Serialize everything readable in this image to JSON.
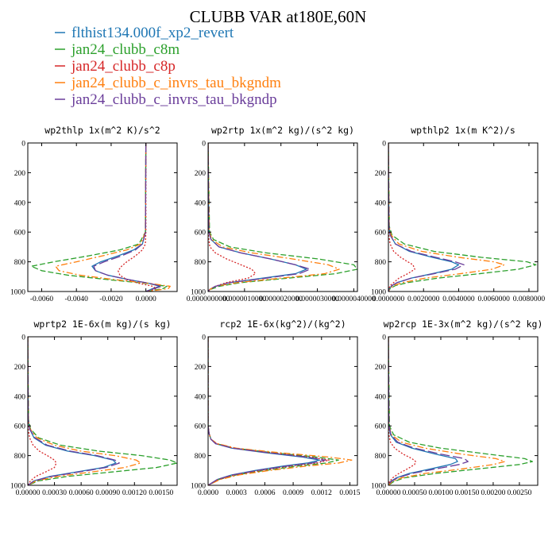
{
  "title": "CLUBB VAR at180E,60N",
  "legend": [
    {
      "label": "flthist134.000f_xp2_revert",
      "color": "#1f77b4",
      "dash": "solid"
    },
    {
      "label": "jan24_clubb_c8m",
      "color": "#2ca02c",
      "dash": "dashed"
    },
    {
      "label": "jan24_clubb_c8p",
      "color": "#d62728",
      "dash": "dotted"
    },
    {
      "label": "jan24_clubb_c_invrs_tau_bkgndm",
      "color": "#ff7f0e",
      "dash": "dashdot"
    },
    {
      "label": "jan24_clubb_c_invrs_tau_bkgndp",
      "color": "#6a3d9a",
      "dash": "longdash"
    }
  ],
  "chart_data": [
    {
      "type": "line",
      "title": "wp2thlp  1x(m^2 K)/s^2",
      "xlim": [
        -0.0068,
        0.0018
      ],
      "ylim": [
        1000,
        0
      ],
      "xticks": [
        -0.006,
        -0.004,
        -0.002,
        0.0
      ],
      "xtick_labels": [
        "-0.0060",
        "-0.0040",
        "-0.0020",
        "0.0000"
      ],
      "yticks": [
        0,
        200,
        400,
        600,
        800,
        1000
      ],
      "ytick_labels": [
        "0",
        "200",
        "400",
        "600",
        "800",
        "1000"
      ],
      "y": [
        0,
        600,
        680,
        720,
        760,
        800,
        830,
        860,
        890,
        920,
        945,
        965,
        980,
        995,
        1000
      ],
      "series": [
        {
          "values": [
            0,
            -2e-05,
            -0.0002,
            -0.0007,
            -0.0016,
            -0.0026,
            -0.0031,
            -0.0029,
            -0.0022,
            -0.001,
            0.0002,
            0.0008,
            0.0004,
            0.0001,
            0.0
          ]
        },
        {
          "values": [
            0,
            -3e-05,
            -0.0004,
            -0.0015,
            -0.0033,
            -0.0053,
            -0.0066,
            -0.006,
            -0.0045,
            -0.0022,
            0.0,
            0.0012,
            0.001,
            0.0003,
            0.0
          ]
        },
        {
          "values": [
            0,
            0.0,
            -3e-05,
            -0.0002,
            -0.0006,
            -0.0011,
            -0.0014,
            -0.0016,
            -0.0015,
            -0.0011,
            -0.0004,
            0.0004,
            0.0006,
            0.0002,
            0.0
          ]
        },
        {
          "values": [
            0,
            -3e-05,
            -0.0003,
            -0.0011,
            -0.0025,
            -0.004,
            -0.0052,
            -0.005,
            -0.0038,
            -0.0018,
            0.0002,
            0.0014,
            0.0013,
            0.0004,
            0.0
          ]
        },
        {
          "values": [
            0,
            -2e-05,
            -0.0002,
            -0.0006,
            -0.0014,
            -0.0024,
            -0.003,
            -0.0029,
            -0.0022,
            -0.001,
            0.0002,
            0.0009,
            0.0005,
            0.0001,
            0.0
          ]
        }
      ]
    },
    {
      "type": "line",
      "title": "wp2rtp  1x(m^2 kg)/(s^2 kg)",
      "xlim": [
        0,
        4.1e-06
      ],
      "ylim": [
        1000,
        0
      ],
      "xticks": [
        0,
        1e-06,
        2e-06,
        3e-06,
        4e-06
      ],
      "xtick_labels": [
        "0.0000000000",
        "0.0000010000",
        "0.0000020000",
        "0.0000030000",
        "0.0000040000"
      ],
      "yticks": [
        0,
        200,
        400,
        600,
        800,
        1000
      ],
      "ytick_labels": [
        "0",
        "200",
        "400",
        "600",
        "800",
        "1000"
      ],
      "y": [
        0,
        600,
        650,
        700,
        740,
        780,
        820,
        850,
        880,
        910,
        940,
        965,
        985,
        1000
      ],
      "series": [
        {
          "values": [
            0,
            2e-08,
            8e-08,
            3e-07,
            9e-07,
            1.7e-06,
            2.4e-06,
            2.7e-06,
            2.4e-06,
            1.5e-06,
            6e-07,
            2e-07,
            5e-08,
            0
          ]
        },
        {
          "values": [
            0,
            4e-08,
            1.5e-07,
            6e-07,
            1.6e-06,
            3e-06,
            4e-06,
            4.1e-06,
            3.5e-06,
            2.2e-06,
            9e-07,
            3e-07,
            8e-08,
            0
          ]
        },
        {
          "values": [
            0,
            0.0,
            2e-08,
            5e-08,
            2e-07,
            5e-07,
            9e-07,
            1.2e-06,
            1.3e-06,
            1.1e-06,
            5e-07,
            2e-07,
            5e-08,
            0
          ]
        },
        {
          "values": [
            0,
            3e-08,
            1e-07,
            4e-07,
            1.2e-06,
            2.3e-06,
            3.3e-06,
            3.6e-06,
            3.2e-06,
            2e-06,
            8e-07,
            2e-07,
            6e-08,
            0
          ]
        },
        {
          "values": [
            0,
            2e-08,
            8e-08,
            3e-07,
            9e-07,
            1.7e-06,
            2.4e-06,
            2.8e-06,
            2.5e-06,
            1.6e-06,
            6e-07,
            2e-07,
            5e-08,
            0
          ]
        }
      ]
    },
    {
      "type": "line",
      "title": "wpthlp2  1x(m K^2)/s",
      "xlim": [
        0,
        0.0085
      ],
      "ylim": [
        1000,
        0
      ],
      "xticks": [
        0,
        0.002,
        0.004,
        0.006,
        0.008
      ],
      "xtick_labels": [
        "0.0000000",
        "0.0020000",
        "0.0040000",
        "0.0060000",
        "0.0080000"
      ],
      "yticks": [
        0,
        200,
        400,
        600,
        800,
        1000
      ],
      "ytick_labels": [
        "0",
        "200",
        "400",
        "600",
        "800",
        "1000"
      ],
      "y": [
        0,
        560,
        620,
        680,
        730,
        770,
        800,
        820,
        850,
        880,
        910,
        940,
        960,
        980,
        1000
      ],
      "series": [
        {
          "values": [
            0,
            3e-05,
            0.0001,
            0.0004,
            0.0012,
            0.0025,
            0.0036,
            0.004,
            0.0036,
            0.0025,
            0.0013,
            0.0005,
            0.0002,
            5e-05,
            0
          ]
        },
        {
          "values": [
            0,
            5e-05,
            0.0002,
            0.0009,
            0.0026,
            0.0053,
            0.0079,
            0.0084,
            0.0074,
            0.0052,
            0.0028,
            0.0011,
            0.0004,
            0.0001,
            0
          ]
        },
        {
          "values": [
            0,
            0.0,
            2e-05,
            0.0001,
            0.0003,
            0.0007,
            0.0011,
            0.0014,
            0.0015,
            0.0011,
            0.0006,
            0.0003,
            0.0001,
            3e-05,
            0
          ]
        },
        {
          "values": [
            0,
            4e-05,
            0.00015,
            0.0006,
            0.0019,
            0.004,
            0.006,
            0.0066,
            0.0059,
            0.0041,
            0.0021,
            0.0008,
            0.0003,
            0.0001,
            0
          ]
        },
        {
          "values": [
            0,
            3e-05,
            0.0001,
            0.0004,
            0.0013,
            0.0027,
            0.0038,
            0.0043,
            0.0038,
            0.0026,
            0.0013,
            0.0005,
            0.0002,
            5e-05,
            0
          ]
        }
      ]
    },
    {
      "type": "line",
      "title": "wprtp2  1E-6x(m kg)/(s kg)",
      "xlim": [
        0,
        0.00168
      ],
      "ylim": [
        1000,
        0
      ],
      "xticks": [
        0,
        0.0003,
        0.0006,
        0.0009,
        0.0012,
        0.0015
      ],
      "xtick_labels": [
        "0.00000",
        "0.00030",
        "0.00060",
        "0.00090",
        "0.00120",
        "0.00150"
      ],
      "yticks": [
        0,
        200,
        400,
        600,
        800,
        1000
      ],
      "ytick_labels": [
        "0",
        "200",
        "400",
        "600",
        "800",
        "1000"
      ],
      "y": [
        0,
        560,
        620,
        680,
        730,
        770,
        800,
        830,
        850,
        880,
        910,
        940,
        970,
        1000
      ],
      "series": [
        {
          "values": [
            0,
            5e-06,
            2e-05,
            7e-05,
            0.0002,
            0.00045,
            0.00075,
            0.00096,
            0.00099,
            0.00085,
            0.00055,
            0.00025,
            7e-05,
            0
          ]
        },
        {
          "values": [
            0,
            8e-06,
            3e-05,
            0.00012,
            0.00037,
            0.0008,
            0.00128,
            0.0016,
            0.00168,
            0.00145,
            0.00095,
            0.00045,
            0.00012,
            0
          ]
        },
        {
          "values": [
            0,
            0.0,
            5e-06,
            2e-05,
            6e-05,
            0.00013,
            0.00022,
            0.0003,
            0.00032,
            0.0003,
            0.0002,
            9e-05,
            3e-05,
            0
          ]
        },
        {
          "values": [
            0,
            6e-06,
            2.5e-05,
            0.0001,
            0.0003,
            0.0006,
            0.00098,
            0.00122,
            0.00127,
            0.00109,
            0.00072,
            0.00034,
            9e-05,
            0
          ]
        },
        {
          "values": [
            0,
            5e-06,
            2e-05,
            8e-05,
            0.00022,
            0.00048,
            0.00078,
            0.00098,
            0.00103,
            0.00088,
            0.00058,
            0.00027,
            7e-05,
            0
          ]
        }
      ]
    },
    {
      "type": "line",
      "title": "rcp2  1E-6x(kg^2)/(kg^2)",
      "xlim": [
        0,
        0.00158
      ],
      "ylim": [
        1000,
        0
      ],
      "xticks": [
        0,
        0.0003,
        0.0006,
        0.0009,
        0.0012,
        0.0015
      ],
      "xtick_labels": [
        "0.0000",
        "0.0003",
        "0.0006",
        "0.0009",
        "0.0012",
        "0.0015"
      ],
      "yticks": [
        0,
        200,
        400,
        600,
        800,
        1000
      ],
      "ytick_labels": [
        "0",
        "200",
        "400",
        "600",
        "800",
        "1000"
      ],
      "y": [
        0,
        600,
        650,
        690,
        720,
        750,
        780,
        810,
        830,
        850,
        870,
        900,
        930,
        960,
        1000
      ],
      "series": [
        {
          "values": [
            0,
            0.0,
            1e-05,
            3e-05,
            8e-05,
            0.00025,
            0.0006,
            0.001,
            0.00118,
            0.00105,
            0.0008,
            0.0005,
            0.00025,
            0.0001,
            0
          ]
        },
        {
          "values": [
            0,
            0.0,
            1e-05,
            3e-05,
            9e-05,
            0.00028,
            0.00068,
            0.00115,
            0.00138,
            0.00125,
            0.00095,
            0.0006,
            0.0003,
            0.00012,
            0
          ]
        },
        {
          "values": [
            0,
            0.0,
            1e-05,
            3e-05,
            9e-05,
            0.00027,
            0.00064,
            0.00108,
            0.00128,
            0.00115,
            0.00087,
            0.00055,
            0.00028,
            0.00011,
            0
          ]
        },
        {
          "values": [
            0,
            0.0,
            1e-05,
            3e-05,
            0.0001,
            0.0003,
            0.00075,
            0.00128,
            0.00152,
            0.00138,
            0.00105,
            0.00065,
            0.00033,
            0.00013,
            0
          ]
        },
        {
          "values": [
            0,
            0.0,
            1e-05,
            3e-05,
            8e-05,
            0.00026,
            0.00063,
            0.00105,
            0.00124,
            0.0011,
            0.00084,
            0.00052,
            0.00026,
            0.0001,
            0
          ]
        }
      ]
    },
    {
      "type": "line",
      "title": "wp2rcp  1E-3x(m^2 kg)/(s^2 kg)",
      "xlim": [
        0,
        0.00285
      ],
      "ylim": [
        1000,
        0
      ],
      "xticks": [
        0,
        0.0005,
        0.001,
        0.0015,
        0.002,
        0.0025
      ],
      "xtick_labels": [
        "0.00000",
        "0.00050",
        "0.00100",
        "0.00150",
        "0.00200",
        "0.00250"
      ],
      "yticks": [
        0,
        200,
        400,
        600,
        800,
        1000
      ],
      "ytick_labels": [
        "0",
        "200",
        "400",
        "600",
        "800",
        "1000"
      ],
      "y": [
        0,
        600,
        660,
        710,
        750,
        790,
        820,
        840,
        860,
        890,
        920,
        950,
        975,
        1000
      ],
      "series": [
        {
          "values": [
            0,
            1e-05,
            4e-05,
            0.00015,
            0.00045,
            0.0009,
            0.00128,
            0.00132,
            0.00118,
            0.0008,
            0.0004,
            0.00015,
            4e-05,
            0
          ]
        },
        {
          "values": [
            0,
            2e-05,
            0.0001,
            0.0004,
            0.001,
            0.0019,
            0.0026,
            0.00275,
            0.0025,
            0.0017,
            0.0009,
            0.0003,
            0.0001,
            0
          ]
        },
        {
          "values": [
            0,
            0.0,
            1e-05,
            4e-05,
            0.00012,
            0.00028,
            0.00045,
            0.00052,
            0.0005,
            0.00036,
            0.0002,
            8e-05,
            2e-05,
            0
          ]
        },
        {
          "values": [
            0,
            1e-05,
            6e-05,
            0.00025,
            0.0007,
            0.0014,
            0.00205,
            0.00222,
            0.002,
            0.0014,
            0.0007,
            0.00025,
            7e-05,
            0
          ]
        },
        {
          "values": [
            0,
            1e-05,
            5e-05,
            0.00018,
            0.0005,
            0.001,
            0.00145,
            0.00152,
            0.00135,
            0.0009,
            0.00045,
            0.00017,
            5e-05,
            0
          ]
        }
      ]
    }
  ]
}
